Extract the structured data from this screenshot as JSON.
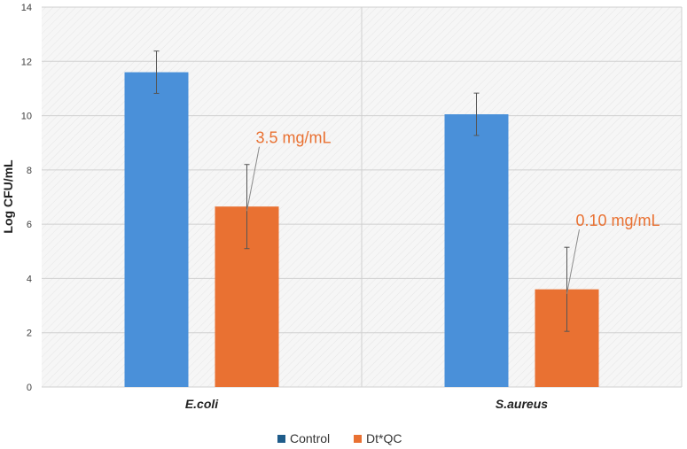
{
  "chart_data": {
    "type": "bar",
    "title": "",
    "xlabel": "",
    "ylabel": "Log CFU/mL",
    "ylim": [
      0,
      14
    ],
    "yticks": [
      0,
      2,
      4,
      6,
      8,
      10,
      12,
      14
    ],
    "grid": true,
    "legend_position": "bottom",
    "categories": [
      "E.coli",
      "S.aureus"
    ],
    "series": [
      {
        "name": "Control",
        "color": "#4A90D9",
        "legend_color": "#1F5C8A",
        "values": [
          11.6,
          10.05
        ],
        "errors": [
          0.78,
          0.78
        ]
      },
      {
        "name": "Dt*QC",
        "color": "#E97132",
        "legend_color": "#E97132",
        "values": [
          6.65,
          3.6
        ],
        "errors": [
          1.55,
          1.55
        ]
      }
    ],
    "annotations": [
      {
        "text": "3.5 mg/mL",
        "category": 0,
        "series": 1,
        "color": "#E97132"
      },
      {
        "text": "0.10 mg/mL",
        "category": 1,
        "series": 1,
        "color": "#E97132"
      }
    ]
  }
}
